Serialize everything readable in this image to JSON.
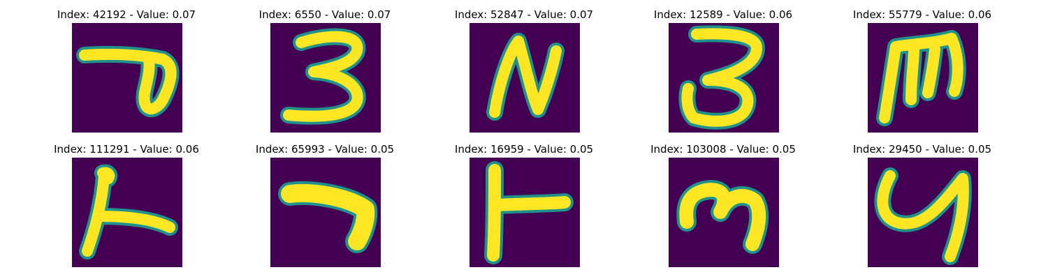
{
  "colors": {
    "background": "#440154",
    "stroke": "#fde725",
    "edge": "#21918c"
  },
  "panels": [
    {
      "title": "Index: 42192 - Value: 0.07",
      "index": 42192,
      "value": 0.07
    },
    {
      "title": "Index: 6550 - Value: 0.07",
      "index": 6550,
      "value": 0.07
    },
    {
      "title": "Index: 52847 - Value: 0.07",
      "index": 52847,
      "value": 0.07
    },
    {
      "title": "Index: 12589 - Value: 0.06",
      "index": 12589,
      "value": 0.06
    },
    {
      "title": "Index: 55779 - Value: 0.06",
      "index": 55779,
      "value": 0.06
    },
    {
      "title": "Index: 111291 - Value: 0.06",
      "index": 111291,
      "value": 0.06
    },
    {
      "title": "Index: 65993 - Value: 0.05",
      "index": 65993,
      "value": 0.05
    },
    {
      "title": "Index: 16959 - Value: 0.05",
      "index": 16959,
      "value": 0.05
    },
    {
      "title": "Index: 103008 - Value: 0.05",
      "index": 103008,
      "value": 0.05
    },
    {
      "title": "Index: 29450 - Value: 0.05",
      "index": 29450,
      "value": 0.05
    }
  ]
}
